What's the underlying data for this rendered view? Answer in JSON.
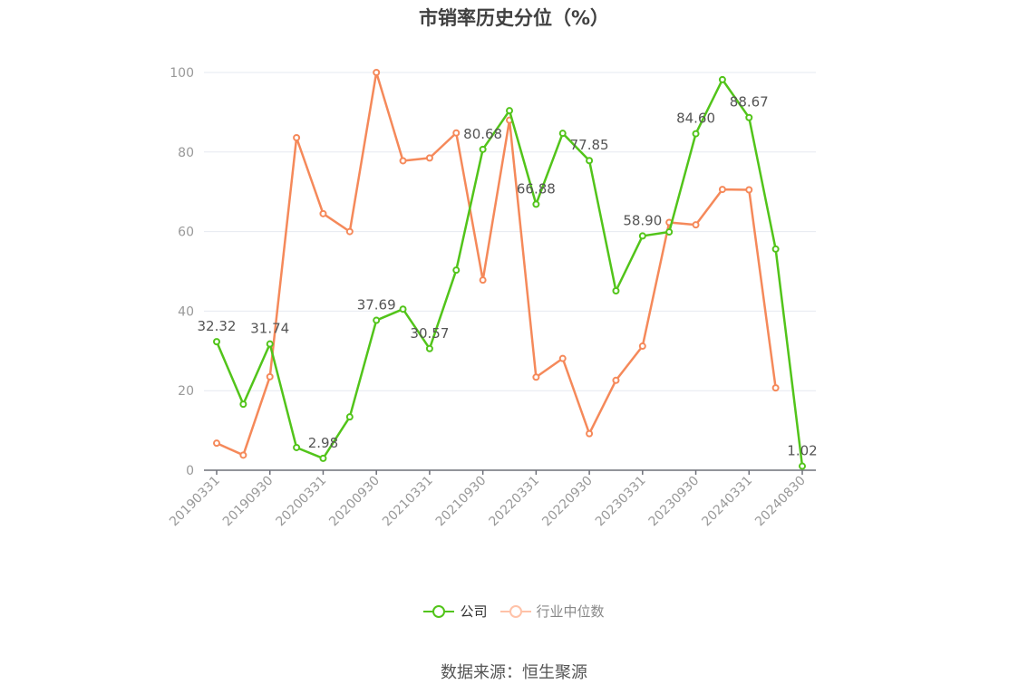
{
  "title": "市销率历史分位（%）",
  "source": "数据来源：恒生聚源",
  "legend": [
    {
      "label": "公司",
      "color": "#52c41a"
    },
    {
      "label": "行业中位数",
      "color": "#ffb99a"
    }
  ],
  "chart_data": {
    "type": "line",
    "title": "市销率历史分位（%）",
    "xlabel": "",
    "ylabel": "",
    "ylim": [
      0,
      100
    ],
    "yticks": [
      0,
      20,
      40,
      60,
      80,
      100
    ],
    "grid": true,
    "legend_position": "bottom",
    "x_tick_labels": [
      "20190331",
      "20190930",
      "20200331",
      "20200930",
      "20210331",
      "20210930",
      "20220331",
      "20220930",
      "20230331",
      "20230930",
      "20240331",
      "20240830"
    ],
    "x": [
      "20190331",
      "20190630",
      "20190930",
      "20191231",
      "20200331",
      "20200630",
      "20200930",
      "20201231",
      "20210331",
      "20210630",
      "20210930",
      "20211231",
      "20220331",
      "20220630",
      "20220930",
      "20221231",
      "20230331",
      "20230630",
      "20230930",
      "20231231",
      "20240331",
      "20240630",
      "20240830"
    ],
    "series": [
      {
        "name": "公司",
        "color": "#52c41a",
        "values": [
          32.32,
          16.6,
          31.74,
          5.7,
          2.98,
          13.4,
          37.69,
          40.5,
          30.57,
          50.3,
          80.68,
          90.4,
          66.88,
          84.7,
          77.85,
          45.1,
          58.9,
          59.9,
          84.6,
          98.2,
          88.67,
          55.6,
          1.02
        ],
        "labels": {
          "0": "32.32",
          "2": "31.74",
          "4": "2.98",
          "6": "37.69",
          "8": "30.57",
          "10": "80.68",
          "12": "66.88",
          "14": "77.85",
          "16": "58.90",
          "18": "84.60",
          "20": "88.67",
          "22": "1.02"
        }
      },
      {
        "name": "行业中位数",
        "color": "#f5895a",
        "values": [
          6.8,
          3.8,
          23.5,
          83.6,
          64.5,
          60.0,
          100,
          77.8,
          78.5,
          84.8,
          47.8,
          88.0,
          23.4,
          28.1,
          9.2,
          22.6,
          31.2,
          62.3,
          61.7,
          70.6,
          70.5,
          20.7,
          null
        ]
      }
    ]
  }
}
